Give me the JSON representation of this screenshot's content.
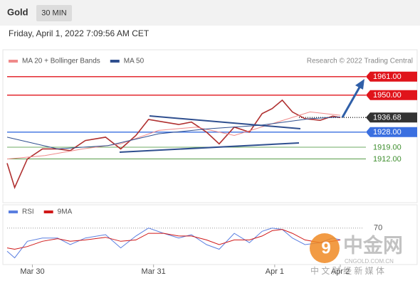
{
  "header": {
    "symbol": "Gold",
    "interval": "30 MIN",
    "timestamp": "Friday, April 1, 2022 7:09:56 AM CET"
  },
  "watermark": {
    "logo": "中金网",
    "site": "CNGOLD.COM.CN",
    "slogan": "中 文 财 经 新 媒 体"
  },
  "chart_data": [
    {
      "type": "line",
      "credit": "Research © 2022 Trading Central",
      "xlim": [
        0,
        141
      ],
      "xticks": [
        {
          "value": 10,
          "label": "Mar 30"
        },
        {
          "value": 58,
          "label": "Mar 31"
        },
        {
          "value": 106,
          "label": "Apr 1"
        },
        {
          "value": 132,
          "label": "Apr 2"
        }
      ],
      "ylim": [
        1886,
        1977
      ],
      "series": [
        {
          "color": "#b03030",
          "x": [
            0,
            3,
            8,
            14,
            20,
            25,
            31,
            39,
            45,
            51,
            56,
            62,
            68,
            73,
            79,
            84,
            90,
            96,
            101,
            105,
            109,
            113,
            118,
            124,
            129,
            132
          ],
          "values": [
            1909.5,
            1895,
            1912,
            1918,
            1918,
            1917,
            1923,
            1925,
            1918,
            1926,
            1935.5,
            1934,
            1932.5,
            1934,
            1928,
            1921,
            1931,
            1928,
            1939,
            1942,
            1947,
            1940,
            1936,
            1935,
            1937.5,
            1936.68
          ]
        },
        {
          "name": "MA 20 + Bollinger Bands",
          "color": "#f08a8a",
          "x": [
            0,
            15,
            30,
            45,
            60,
            75,
            90,
            105,
            120,
            132
          ],
          "values": [
            1912,
            1914,
            1918,
            1921,
            1929,
            1931,
            1926,
            1933,
            1940,
            1938
          ]
        },
        {
          "name": "MA 50",
          "color": "#2f4f8f",
          "x": [
            0,
            20,
            40,
            60,
            80,
            100,
            120,
            132
          ],
          "values": [
            1925,
            1918,
            1920,
            1927,
            1930,
            1932,
            1936,
            1937
          ]
        }
      ],
      "levels": [
        {
          "value": 1961,
          "label": "1961.00",
          "color": "#e0141b",
          "style": "box"
        },
        {
          "value": 1950,
          "label": "1950.00",
          "color": "#e0141b",
          "style": "box"
        },
        {
          "value": 1936.68,
          "label": "1936.68",
          "color": "#333333",
          "style": "current"
        },
        {
          "value": 1928,
          "label": "1928.00",
          "color": "#3a6fe0",
          "style": "box"
        },
        {
          "value": 1919,
          "label": "1919.00",
          "color": "#3f8f2f",
          "style": "text"
        },
        {
          "value": 1912,
          "label": "1912.00",
          "color": "#3f8f2f",
          "style": "text"
        }
      ]
    },
    {
      "type": "line",
      "xlim": [
        0,
        141
      ],
      "ylim": [
        17,
        103
      ],
      "yticks": [
        70
      ],
      "series": [
        {
          "name": "RSI",
          "color": "#5b7fe0",
          "x": [
            0,
            3,
            8,
            14,
            20,
            25,
            31,
            39,
            45,
            51,
            56,
            62,
            68,
            73,
            79,
            84,
            90,
            96,
            101,
            105,
            109,
            113,
            118,
            124,
            129,
            132
          ],
          "values": [
            35,
            25,
            50,
            55,
            55,
            45,
            55,
            60,
            40,
            58,
            70,
            62,
            55,
            60,
            45,
            38,
            62,
            48,
            65,
            70,
            68,
            55,
            45,
            48,
            55,
            52
          ]
        },
        {
          "name": "9MA",
          "color": "#d01818",
          "x": [
            0,
            3,
            8,
            14,
            20,
            25,
            31,
            39,
            45,
            51,
            56,
            62,
            68,
            73,
            79,
            84,
            90,
            96,
            101,
            105,
            109,
            113,
            118,
            124,
            129,
            132
          ],
          "values": [
            40,
            38,
            42,
            50,
            54,
            50,
            52,
            56,
            50,
            52,
            62,
            62,
            58,
            58,
            52,
            45,
            52,
            52,
            58,
            66,
            68,
            62,
            52,
            48,
            50,
            52
          ]
        }
      ]
    }
  ]
}
